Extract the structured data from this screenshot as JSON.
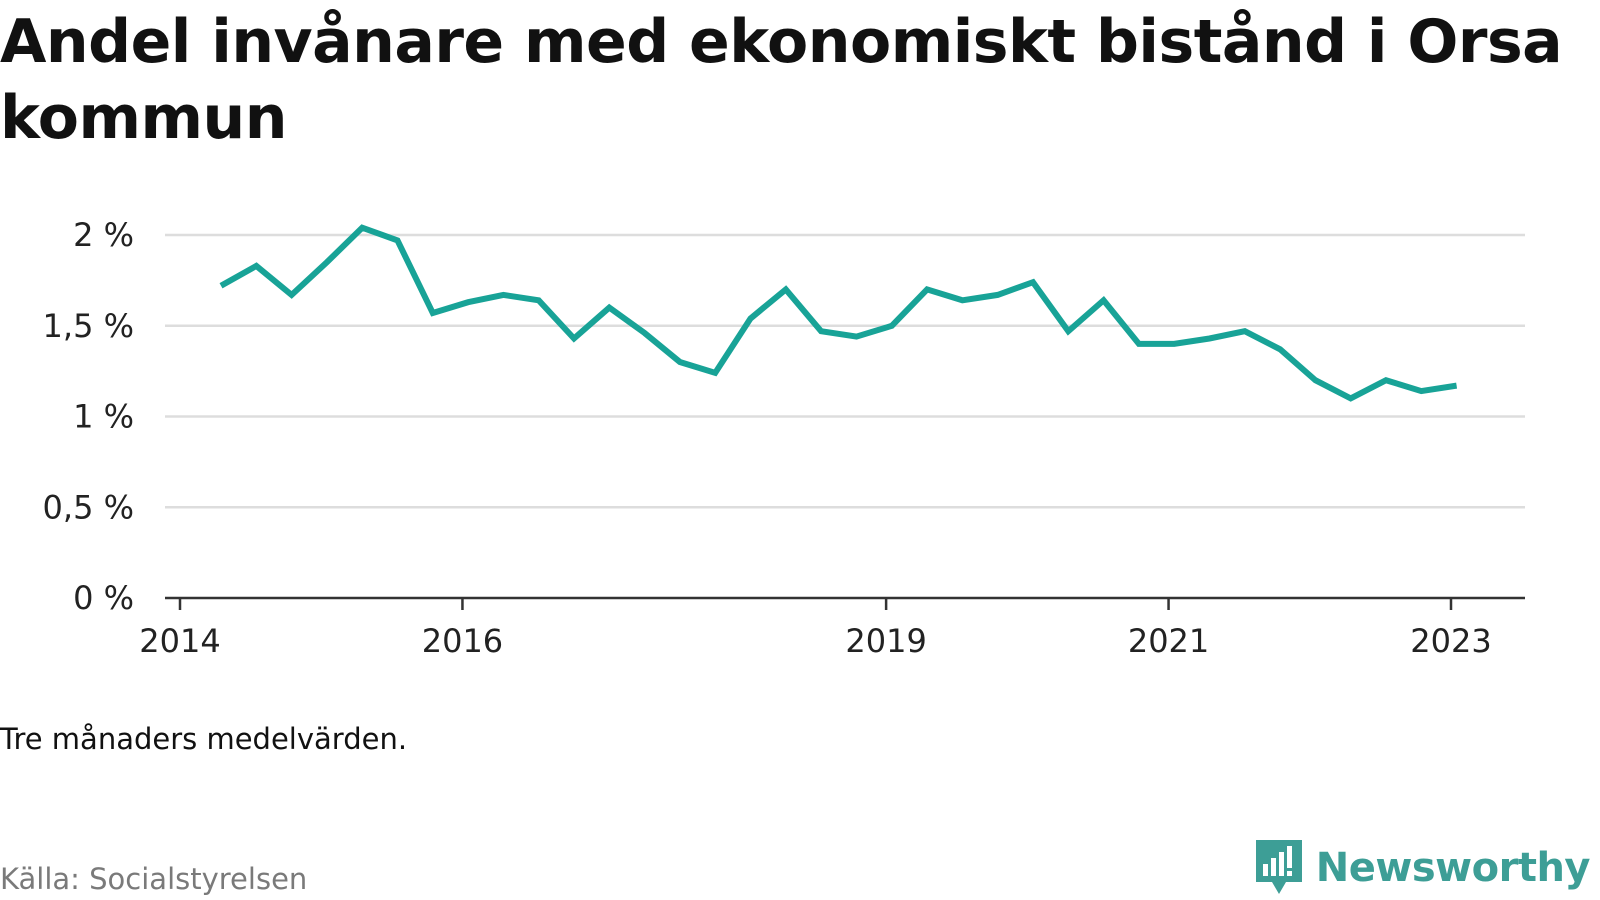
{
  "title": "Andel invånare med ekonomiskt bistånd i Orsa kommun",
  "note": "Tre månaders medelvärden.",
  "source": "Källa: Socialstyrelsen",
  "brand": "Newsworthy",
  "colors": {
    "line": "#18a397",
    "grid": "#dddddd",
    "axis": "#333333",
    "brand": "#3d9e96"
  },
  "chart_data": {
    "type": "line",
    "title": "Andel invånare med ekonomiskt bistånd i Orsa kommun",
    "xlabel": "",
    "ylabel": "",
    "ylim": [
      0,
      2
    ],
    "grid": true,
    "y_ticks": [
      {
        "value": 0,
        "label": "0 %"
      },
      {
        "value": 0.5,
        "label": "0,5 %"
      },
      {
        "value": 1,
        "label": "1 %"
      },
      {
        "value": 1.5,
        "label": "1,5 %"
      },
      {
        "value": 2,
        "label": "2 %"
      }
    ],
    "x_ticks": [
      {
        "value": 2014.0,
        "label": "2014"
      },
      {
        "value": 2016.0,
        "label": "2016"
      },
      {
        "value": 2019.0,
        "label": "2019"
      },
      {
        "value": 2021.0,
        "label": "2021"
      },
      {
        "value": 2023.0,
        "label": "2023"
      }
    ],
    "series": [
      {
        "x": [
          2014.29,
          2014.54,
          2014.79,
          2015.04,
          2015.29,
          2015.54,
          2015.79,
          2016.04,
          2016.29,
          2016.54,
          2016.79,
          2017.04,
          2017.29,
          2017.54,
          2017.79,
          2018.04,
          2018.29,
          2018.54,
          2018.79,
          2019.04,
          2019.29,
          2019.54,
          2019.79,
          2020.04,
          2020.29,
          2020.54,
          2020.79,
          2021.04,
          2021.29,
          2021.54,
          2021.79,
          2022.04,
          2022.29,
          2022.54,
          2022.79,
          2023.04
        ],
        "values": [
          1.72,
          1.83,
          1.67,
          1.85,
          2.04,
          1.97,
          1.57,
          1.63,
          1.67,
          1.64,
          1.43,
          1.6,
          1.46,
          1.3,
          1.24,
          1.54,
          1.7,
          1.47,
          1.44,
          1.5,
          1.7,
          1.64,
          1.67,
          1.74,
          1.47,
          1.64,
          1.4,
          1.4,
          1.43,
          1.47,
          1.37,
          1.2,
          1.1,
          1.2,
          1.14,
          1.17
        ]
      }
    ]
  }
}
